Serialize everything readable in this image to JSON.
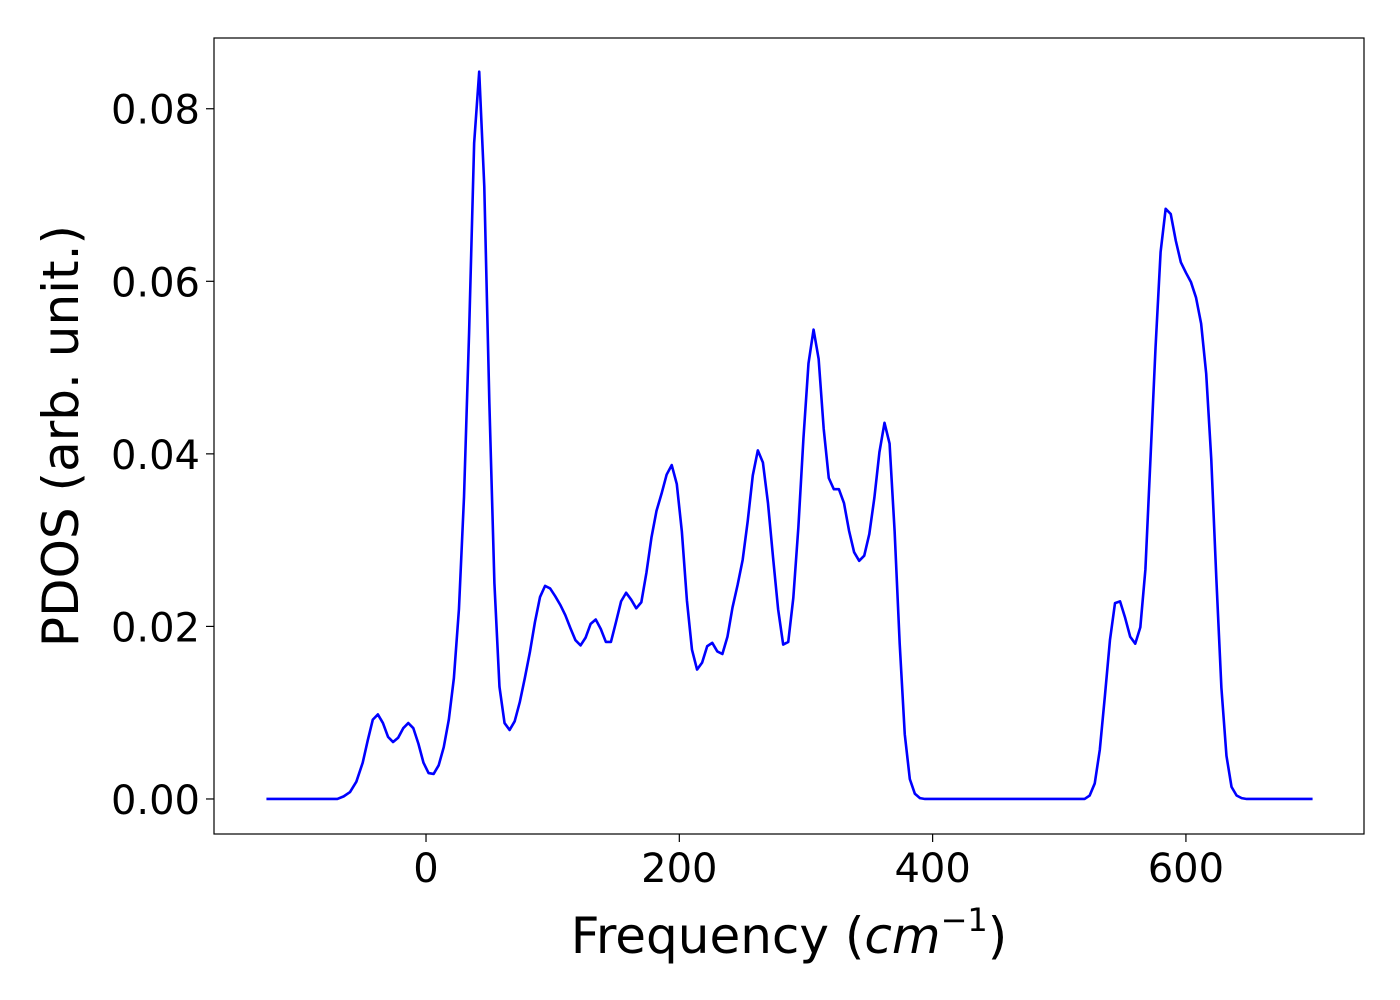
{
  "chart_data": {
    "type": "line",
    "x_label": [
      "Frequency (",
      "cm",
      "−1",
      ")"
    ],
    "y_label": "PDOS (arb. unit.)",
    "x": [
      -126,
      -70,
      -65,
      -60,
      -55,
      -50,
      -46,
      -42,
      -38,
      -34,
      -30,
      -26,
      -22,
      -18,
      -14,
      -10,
      -6,
      -2,
      2,
      6,
      10,
      14,
      18,
      22,
      26,
      30,
      34,
      38,
      42,
      46,
      50,
      54,
      58,
      62,
      66,
      70,
      74,
      78,
      82,
      86,
      90,
      94,
      98,
      102,
      106,
      110,
      114,
      118,
      122,
      126,
      130,
      134,
      138,
      142,
      146,
      150,
      154,
      158,
      162,
      166,
      170,
      174,
      178,
      182,
      186,
      190,
      194,
      198,
      202,
      206,
      210,
      214,
      218,
      222,
      226,
      230,
      234,
      238,
      242,
      246,
      250,
      254,
      258,
      262,
      266,
      270,
      274,
      278,
      282,
      286,
      290,
      294,
      298,
      302,
      306,
      310,
      314,
      318,
      322,
      326,
      330,
      334,
      338,
      342,
      346,
      350,
      354,
      358,
      362,
      366,
      370,
      374,
      378,
      382,
      386,
      390,
      394,
      520,
      524,
      528,
      532,
      536,
      540,
      544,
      548,
      552,
      556,
      560,
      564,
      568,
      572,
      576,
      580,
      584,
      588,
      592,
      596,
      600,
      604,
      608,
      612,
      616,
      620,
      624,
      628,
      632,
      636,
      640,
      644,
      648,
      700
    ],
    "series": [
      {
        "name": "PDOS",
        "color": "#0000ff",
        "values": [
          0,
          0,
          0.0003,
          0.0008,
          0.002,
          0.0042,
          0.0068,
          0.0092,
          0.0098,
          0.0088,
          0.0072,
          0.0066,
          0.0071,
          0.0082,
          0.0088,
          0.0082,
          0.0064,
          0.0042,
          0.003,
          0.0029,
          0.0039,
          0.006,
          0.0092,
          0.014,
          0.022,
          0.035,
          0.054,
          0.076,
          0.0843,
          0.071,
          0.046,
          0.025,
          0.013,
          0.0088,
          0.008,
          0.009,
          0.0112,
          0.014,
          0.017,
          0.0205,
          0.0234,
          0.0247,
          0.0244,
          0.0235,
          0.0225,
          0.0213,
          0.0198,
          0.0184,
          0.0178,
          0.0187,
          0.0203,
          0.0208,
          0.0197,
          0.0182,
          0.0182,
          0.0205,
          0.0229,
          0.0239,
          0.0231,
          0.0221,
          0.0228,
          0.0262,
          0.0303,
          0.0334,
          0.0354,
          0.0376,
          0.0387,
          0.0365,
          0.031,
          0.023,
          0.0173,
          0.015,
          0.0158,
          0.0177,
          0.0181,
          0.0171,
          0.0168,
          0.0188,
          0.0222,
          0.0248,
          0.0277,
          0.0322,
          0.0375,
          0.0404,
          0.039,
          0.0343,
          0.028,
          0.022,
          0.0179,
          0.0182,
          0.0233,
          0.0315,
          0.0418,
          0.0505,
          0.0544,
          0.051,
          0.0429,
          0.0372,
          0.0359,
          0.0359,
          0.0343,
          0.0311,
          0.0286,
          0.0276,
          0.0282,
          0.0307,
          0.0349,
          0.0402,
          0.0436,
          0.0412,
          0.031,
          0.018,
          0.0075,
          0.0023,
          0.0006,
          0.0001,
          0,
          0,
          0.0004,
          0.0018,
          0.0057,
          0.0119,
          0.0184,
          0.0227,
          0.0229,
          0.021,
          0.0188,
          0.018,
          0.0199,
          0.0266,
          0.0394,
          0.0523,
          0.0634,
          0.0684,
          0.0678,
          0.0647,
          0.0622,
          0.061,
          0.0599,
          0.0581,
          0.0551,
          0.0493,
          0.0394,
          0.0256,
          0.0129,
          0.005,
          0.0014,
          0.0004,
          0.0001,
          0,
          0
        ]
      }
    ],
    "xlim": [
      -167.4,
      740.6
    ],
    "ylim": [
      -0.00406,
      0.0882
    ],
    "xticks": [
      0,
      200,
      400,
      600
    ],
    "yticks": [
      {
        "value": 0,
        "label": "0.00"
      },
      0.02,
      0.04,
      0.06,
      0.08
    ]
  }
}
